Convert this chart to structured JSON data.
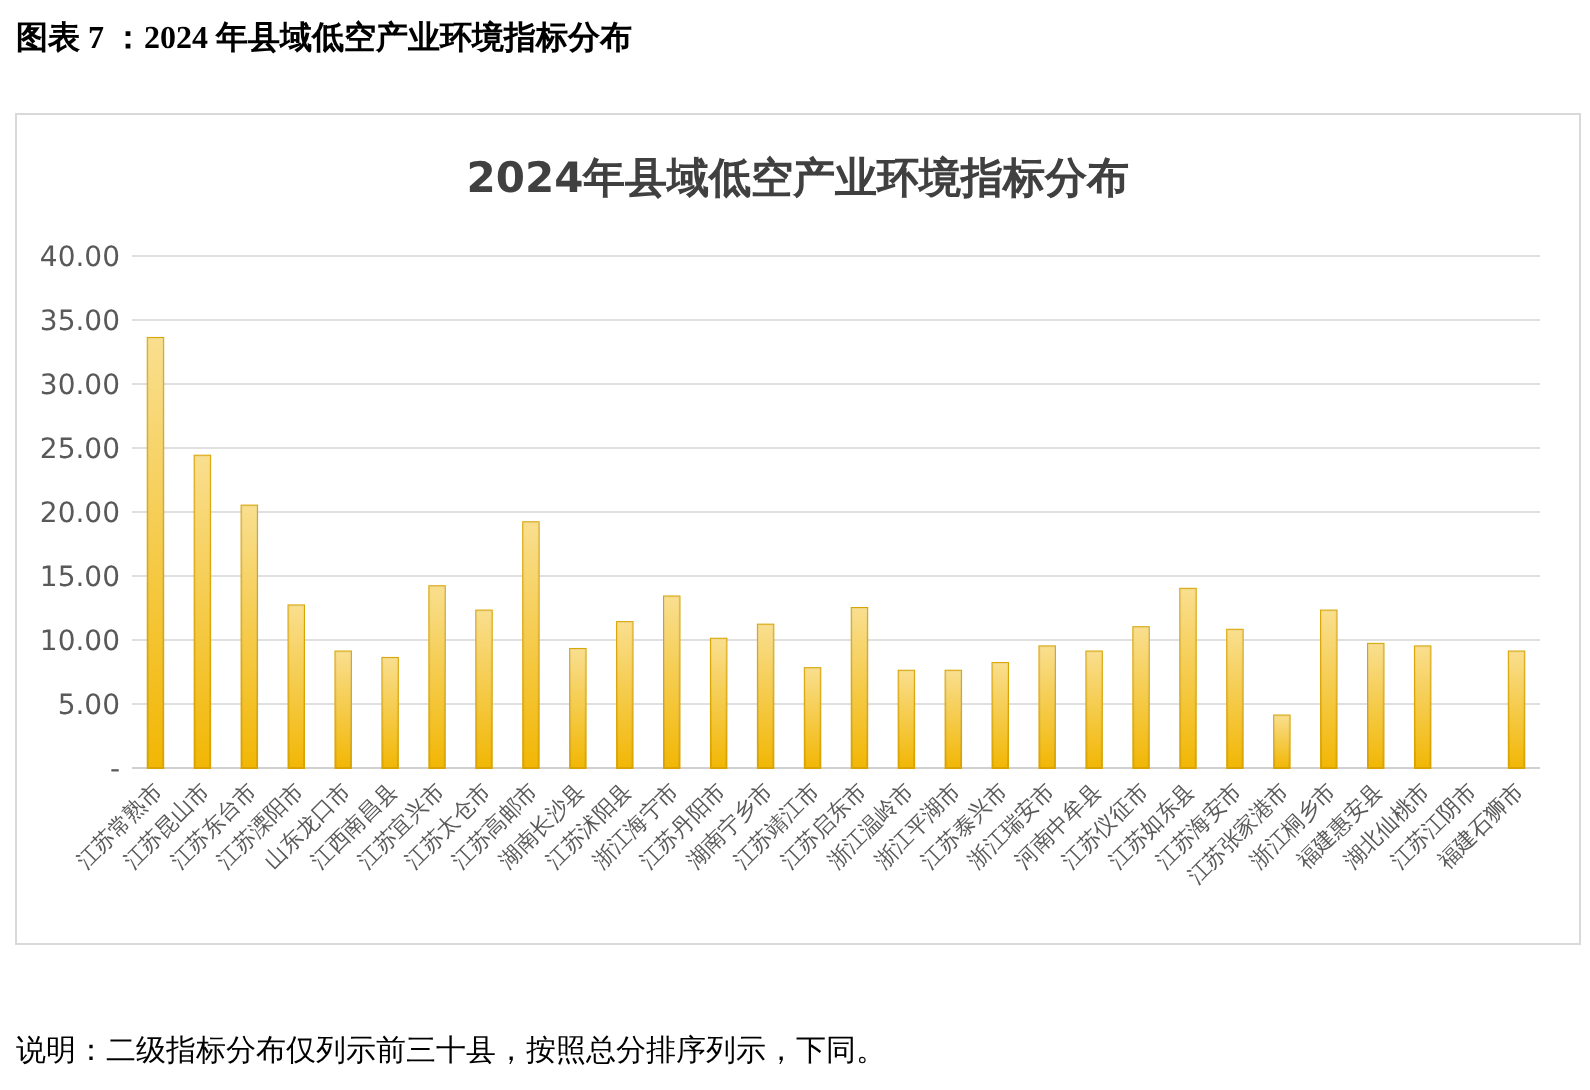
{
  "chart_data": {
    "type": "bar",
    "title": "2024年县域低空产业环境指标分布",
    "categories": [
      "江苏常熟市",
      "江苏昆山市",
      "江苏东台市",
      "江苏溧阳市",
      "山东龙口市",
      "江西南昌县",
      "江苏宜兴市",
      "江苏太仓市",
      "江苏高邮市",
      "湖南长沙县",
      "江苏沭阳县",
      "浙江海宁市",
      "江苏丹阳市",
      "湖南宁乡市",
      "江苏靖江市",
      "江苏启东市",
      "浙江温岭市",
      "浙江平湖市",
      "江苏泰兴市",
      "浙江瑞安市",
      "河南中牟县",
      "江苏仪征市",
      "江苏如东县",
      "江苏海安市",
      "江苏张家港市",
      "浙江桐乡市",
      "福建惠安县",
      "湖北仙桃市",
      "江苏江阴市",
      "福建石狮市"
    ],
    "values": [
      33.6,
      24.4,
      20.5,
      12.7,
      9.1,
      8.6,
      14.2,
      12.3,
      19.2,
      9.3,
      11.4,
      13.4,
      10.1,
      11.2,
      7.8,
      12.5,
      7.6,
      7.6,
      8.2,
      9.5,
      9.1,
      11.0,
      14.0,
      10.8,
      4.1,
      12.3,
      9.7,
      9.5,
      null,
      9.1
    ],
    "color": "#f2b705",
    "ylim": [
      0,
      40
    ],
    "yticks": [
      {
        "value": 0,
        "label": "-"
      },
      {
        "value": 5,
        "label": "5.00"
      },
      {
        "value": 10,
        "label": "10.00"
      },
      {
        "value": 15,
        "label": "15.00"
      },
      {
        "value": 20,
        "label": "20.00"
      },
      {
        "value": 25,
        "label": "25.00"
      },
      {
        "value": 30,
        "label": "30.00"
      },
      {
        "value": 35,
        "label": "35.00"
      },
      {
        "value": 40,
        "label": "40.00"
      }
    ],
    "grid": "y",
    "annotations": [
      "图表 7 ：2024 年县域低空产业环境指标分布",
      "说明：二级指标分布仅列示前三十县，按照总分排序列示，下同。"
    ]
  }
}
